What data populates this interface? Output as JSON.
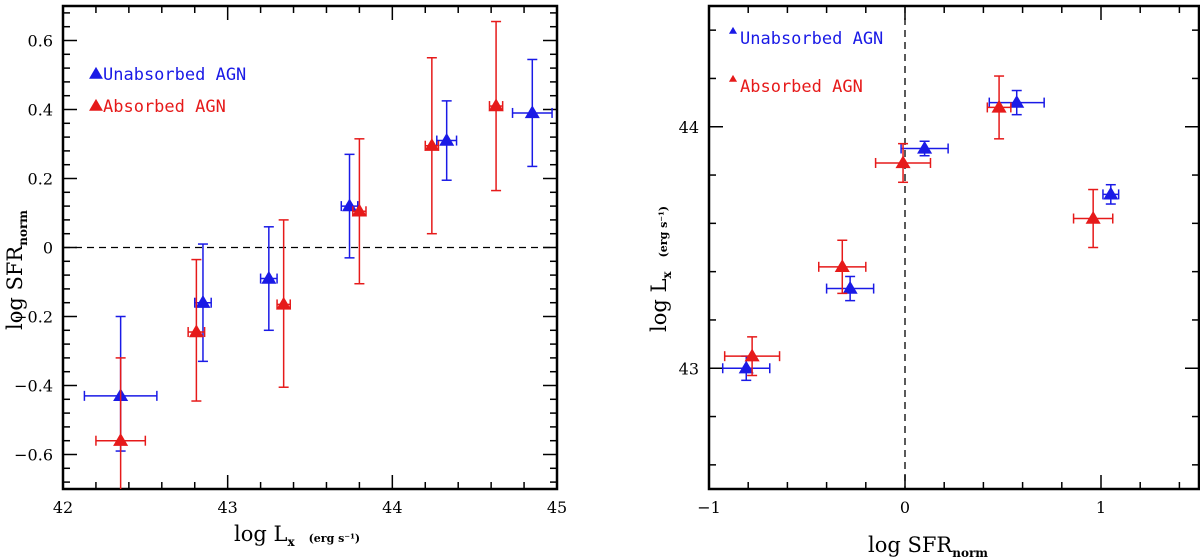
{
  "chart_data": [
    {
      "type": "scatter",
      "title": "",
      "xlabel": {
        "main": "log L",
        "sub": "x",
        "unit": "(erg s⁻¹)"
      },
      "ylabel": {
        "main": "log SFR",
        "sub": "norm"
      },
      "xlim": [
        42,
        45
      ],
      "ylim": [
        -0.7,
        0.7
      ],
      "xticks": [
        42,
        43,
        44,
        45
      ],
      "yticks": [
        -0.6,
        -0.4,
        -0.2,
        0,
        0.2,
        0.4,
        0.6
      ],
      "yticklabels": [
        "−0.6",
        "−0.4",
        "−0.2",
        "0",
        "0.2",
        "0.4",
        "0.6"
      ],
      "reference_line": {
        "orientation": "horizontal",
        "value": 0
      },
      "legend": [
        {
          "label": "Unabsorbed AGN",
          "color": "#1a1ae6"
        },
        {
          "label": "Absorbed AGN",
          "color": "#e61a1a"
        }
      ],
      "series": [
        {
          "name": "Unabsorbed AGN",
          "color": "#1a1ae6",
          "points": [
            {
              "x": 42.35,
              "y": -0.43,
              "xerr": [
                0.22,
                0.22
              ],
              "yerr": [
                0.16,
                0.23
              ]
            },
            {
              "x": 42.85,
              "y": -0.16,
              "xerr": [
                0.05,
                0.05
              ],
              "yerr": [
                0.17,
                0.17
              ]
            },
            {
              "x": 43.25,
              "y": -0.09,
              "xerr": [
                0.05,
                0.05
              ],
              "yerr": [
                0.15,
                0.15
              ]
            },
            {
              "x": 43.74,
              "y": 0.12,
              "xerr": [
                0.05,
                0.05
              ],
              "yerr": [
                0.15,
                0.15
              ]
            },
            {
              "x": 44.33,
              "y": 0.31,
              "xerr": [
                0.06,
                0.06
              ],
              "yerr": [
                0.115,
                0.115
              ]
            },
            {
              "x": 44.85,
              "y": 0.39,
              "xerr": [
                0.12,
                0.12
              ],
              "yerr": [
                0.155,
                0.155
              ]
            }
          ]
        },
        {
          "name": "Absorbed AGN",
          "color": "#e61a1a",
          "points": [
            {
              "x": 42.35,
              "y": -0.56,
              "xerr": [
                0.15,
                0.15
              ],
              "yerr": [
                0.15,
                0.24
              ]
            },
            {
              "x": 42.81,
              "y": -0.245,
              "xerr": [
                0.05,
                0.05
              ],
              "yerr": [
                0.2,
                0.21
              ]
            },
            {
              "x": 43.34,
              "y": -0.165,
              "xerr": [
                0.04,
                0.04
              ],
              "yerr": [
                0.24,
                0.245
              ]
            },
            {
              "x": 43.8,
              "y": 0.105,
              "xerr": [
                0.04,
                0.04
              ],
              "yerr": [
                0.21,
                0.21
              ]
            },
            {
              "x": 44.24,
              "y": 0.295,
              "xerr": [
                0.04,
                0.04
              ],
              "yerr": [
                0.255,
                0.255
              ]
            },
            {
              "x": 44.63,
              "y": 0.41,
              "xerr": [
                0.04,
                0.04
              ],
              "yerr": [
                0.245,
                0.245
              ]
            }
          ]
        }
      ]
    },
    {
      "type": "scatter",
      "title": "",
      "xlabel": {
        "main": "log SFR",
        "sub": "norm"
      },
      "ylabel": {
        "main": "log L",
        "sub": "x",
        "unit": "(erg s⁻¹)"
      },
      "xlim": [
        -1,
        1.5
      ],
      "ylim": [
        42.5,
        44.5
      ],
      "xticks": [
        -1,
        0,
        1
      ],
      "xticklabels": [
        "−1",
        "0",
        "1"
      ],
      "yticks": [
        43,
        44
      ],
      "reference_line": {
        "orientation": "vertical",
        "value": 0
      },
      "legend": [
        {
          "label": "Unabsorbed AGN",
          "color": "#1a1ae6"
        },
        {
          "label": "Absorbed AGN",
          "color": "#e61a1a"
        }
      ],
      "series": [
        {
          "name": "Unabsorbed AGN",
          "color": "#1a1ae6",
          "points": [
            {
              "x": -0.81,
              "y": 43.0,
              "xerr": [
                0.12,
                0.12
              ],
              "yerr": [
                0.05,
                0.05
              ]
            },
            {
              "x": -0.28,
              "y": 43.33,
              "xerr": [
                0.12,
                0.12
              ],
              "yerr": [
                0.05,
                0.05
              ]
            },
            {
              "x": 0.1,
              "y": 43.91,
              "xerr": [
                0.12,
                0.12
              ],
              "yerr": [
                0.03,
                0.03
              ]
            },
            {
              "x": 0.57,
              "y": 44.1,
              "xerr": [
                0.14,
                0.14
              ],
              "yerr": [
                0.05,
                0.05
              ]
            },
            {
              "x": 1.05,
              "y": 43.72,
              "xerr": [
                0.04,
                0.04
              ],
              "yerr": [
                0.04,
                0.04
              ]
            }
          ]
        },
        {
          "name": "Absorbed AGN",
          "color": "#e61a1a",
          "points": [
            {
              "x": -0.78,
              "y": 43.05,
              "xerr": [
                0.14,
                0.14
              ],
              "yerr": [
                0.08,
                0.08
              ]
            },
            {
              "x": -0.32,
              "y": 43.42,
              "xerr": [
                0.12,
                0.12
              ],
              "yerr": [
                0.11,
                0.11
              ]
            },
            {
              "x": -0.01,
              "y": 43.85,
              "xerr": [
                0.14,
                0.14
              ],
              "yerr": [
                0.08,
                0.08
              ]
            },
            {
              "x": 0.48,
              "y": 44.08,
              "xerr": [
                0.06,
                0.06
              ],
              "yerr": [
                0.13,
                0.13
              ]
            },
            {
              "x": 0.96,
              "y": 43.62,
              "xerr": [
                0.1,
                0.1
              ],
              "yerr": [
                0.12,
                0.12
              ]
            }
          ]
        }
      ]
    }
  ]
}
